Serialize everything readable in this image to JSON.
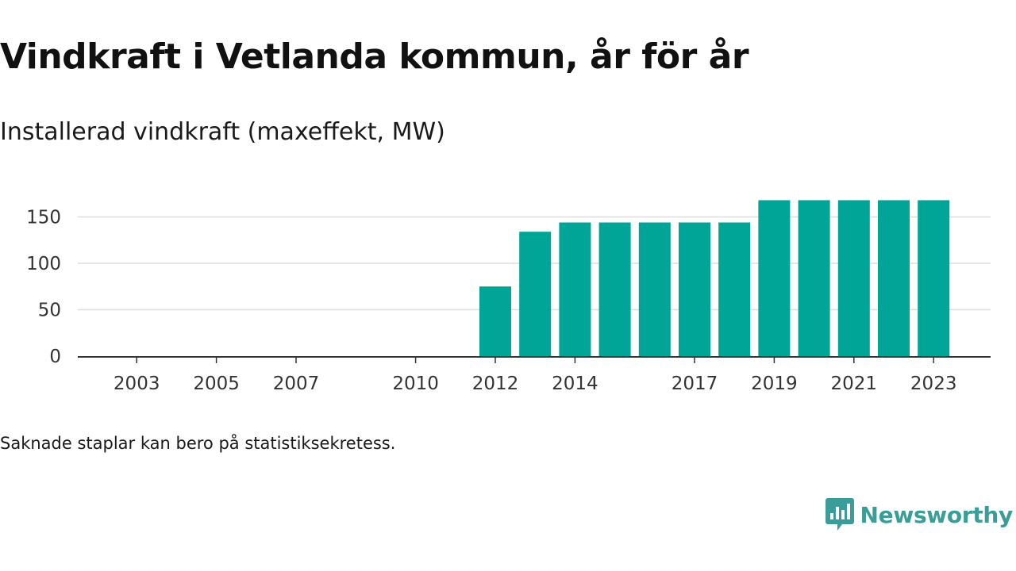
{
  "title": "Vindkraft i Vetlanda kommun, år för år",
  "subtitle": "Installerad vindkraft (maxeffekt, MW)",
  "footnote": "Saknade staplar kan bero på statistiksekretess.",
  "brand": {
    "name": "Newsworthy",
    "icon": "newsworthy-logo-icon",
    "color": "#3a9d97"
  },
  "chart_data": {
    "type": "bar",
    "title": "",
    "xlabel": "",
    "ylabel": "",
    "bar_color": "#00a598",
    "grid": true,
    "ylim": [
      0,
      170
    ],
    "yticks": [
      0,
      50,
      100,
      150
    ],
    "categories": [
      "2002",
      "2003",
      "2004",
      "2005",
      "2006",
      "2007",
      "2008",
      "2009",
      "2010",
      "2011",
      "2012",
      "2013",
      "2014",
      "2015",
      "2016",
      "2017",
      "2018",
      "2019",
      "2020",
      "2021",
      "2022",
      "2023"
    ],
    "xtick_labels": [
      "2003",
      "2005",
      "2007",
      "2010",
      "2012",
      "2014",
      "2017",
      "2019",
      "2021",
      "2023"
    ],
    "values": [
      null,
      null,
      null,
      null,
      null,
      null,
      null,
      null,
      null,
      null,
      75,
      134,
      144,
      144,
      144,
      144,
      144,
      168,
      168,
      168,
      168,
      168
    ]
  }
}
